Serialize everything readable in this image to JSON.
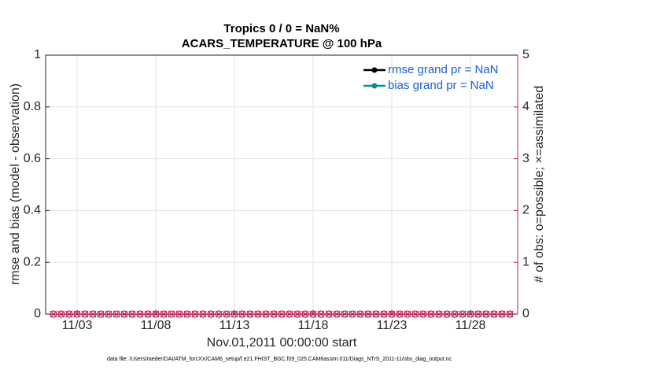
{
  "chart_data": {
    "type": "line",
    "title": "Tropics 0 / 0 = NaN%",
    "subtitle": "ACARS_TEMPERATURE @ 100 hPa",
    "ylabel": "rmse and bias (model - observation)",
    "y2label": "# of obs: o=possible; ×=assimilated",
    "xlabel": "Nov.01,2011 00:00:00 start",
    "footnote": "data file: /Users/raeder/DAI/ATM_forcXX/CAM6_setup/f.e21.FHIST_BGC.f09_025.CAM6assim.011/Diags_NTrS_2011-11/obs_diag_output.nc",
    "x": [
      1.5,
      2,
      2.5,
      3,
      3.5,
      4,
      4.5,
      5,
      5.5,
      6,
      6.5,
      7,
      7.5,
      8,
      8.5,
      9,
      9.5,
      10,
      10.5,
      11,
      11.5,
      12,
      12.5,
      13,
      13.5,
      14,
      14.5,
      15,
      15.5,
      16,
      16.5,
      17,
      17.5,
      18,
      18.5,
      19,
      19.5,
      20,
      20.5,
      21,
      21.5,
      22,
      22.5,
      23,
      23.5,
      24,
      24.5,
      25,
      25.5,
      26,
      26.5,
      27,
      27.5,
      28,
      28.5,
      29,
      29.5,
      30,
      30.5
    ],
    "xlim": [
      1,
      31
    ],
    "xticks": [
      {
        "value": 3,
        "label": "11/03"
      },
      {
        "value": 8,
        "label": "11/08"
      },
      {
        "value": 13,
        "label": "11/13"
      },
      {
        "value": 18,
        "label": "11/18"
      },
      {
        "value": 23,
        "label": "11/23"
      },
      {
        "value": 28,
        "label": "11/28"
      }
    ],
    "ylim": [
      0,
      1
    ],
    "yticks": [
      0,
      0.2,
      0.4,
      0.6,
      0.8,
      1
    ],
    "y2lim": [
      0,
      5
    ],
    "y2ticks": [
      0,
      1,
      2,
      3,
      4,
      5
    ],
    "y2color": "#d6135a",
    "grid": true,
    "legend": "upper right",
    "series": [
      {
        "name": "rmse grand pr = NaN",
        "color": "#000000",
        "in_legend": true,
        "values": [
          null,
          null,
          null,
          null,
          null,
          null,
          null,
          null,
          null,
          null,
          null,
          null,
          null,
          null,
          null,
          null,
          null,
          null,
          null,
          null,
          null,
          null,
          null,
          null,
          null,
          null,
          null,
          null,
          null,
          null,
          null,
          null,
          null,
          null,
          null,
          null,
          null,
          null,
          null,
          null,
          null,
          null,
          null,
          null,
          null,
          null,
          null,
          null,
          null,
          null,
          null,
          null,
          null,
          null,
          null,
          null,
          null,
          null,
          null
        ]
      },
      {
        "name": "bias grand pr = NaN",
        "color": "#138a8a",
        "in_legend": true,
        "values": [
          null,
          null,
          null,
          null,
          null,
          null,
          null,
          null,
          null,
          null,
          null,
          null,
          null,
          null,
          null,
          null,
          null,
          null,
          null,
          null,
          null,
          null,
          null,
          null,
          null,
          null,
          null,
          null,
          null,
          null,
          null,
          null,
          null,
          null,
          null,
          null,
          null,
          null,
          null,
          null,
          null,
          null,
          null,
          null,
          null,
          null,
          null,
          null,
          null,
          null,
          null,
          null,
          null,
          null,
          null,
          null,
          null,
          null,
          null
        ]
      },
      {
        "color": "#d6135a",
        "axis": "y2",
        "marker": "o",
        "values": [
          0,
          0,
          0,
          0,
          0,
          0,
          0,
          0,
          0,
          0,
          0,
          0,
          0,
          0,
          0,
          0,
          0,
          0,
          0,
          0,
          0,
          0,
          0,
          0,
          0,
          0,
          0,
          0,
          0,
          0,
          0,
          0,
          0,
          0,
          0,
          0,
          0,
          0,
          0,
          0,
          0,
          0,
          0,
          0,
          0,
          0,
          0,
          0,
          0,
          0,
          0,
          0,
          0,
          0,
          0,
          0,
          0,
          0,
          0
        ]
      },
      {
        "color": "#d6135a",
        "axis": "y2",
        "marker": "x",
        "values": [
          0,
          0,
          0,
          0,
          0,
          0,
          0,
          0,
          0,
          0,
          0,
          0,
          0,
          0,
          0,
          0,
          0,
          0,
          0,
          0,
          0,
          0,
          0,
          0,
          0,
          0,
          0,
          0,
          0,
          0,
          0,
          0,
          0,
          0,
          0,
          0,
          0,
          0,
          0,
          0,
          0,
          0,
          0,
          0,
          0,
          0,
          0,
          0,
          0,
          0,
          0,
          0,
          0,
          0,
          0,
          0,
          0,
          0,
          0
        ]
      }
    ]
  }
}
